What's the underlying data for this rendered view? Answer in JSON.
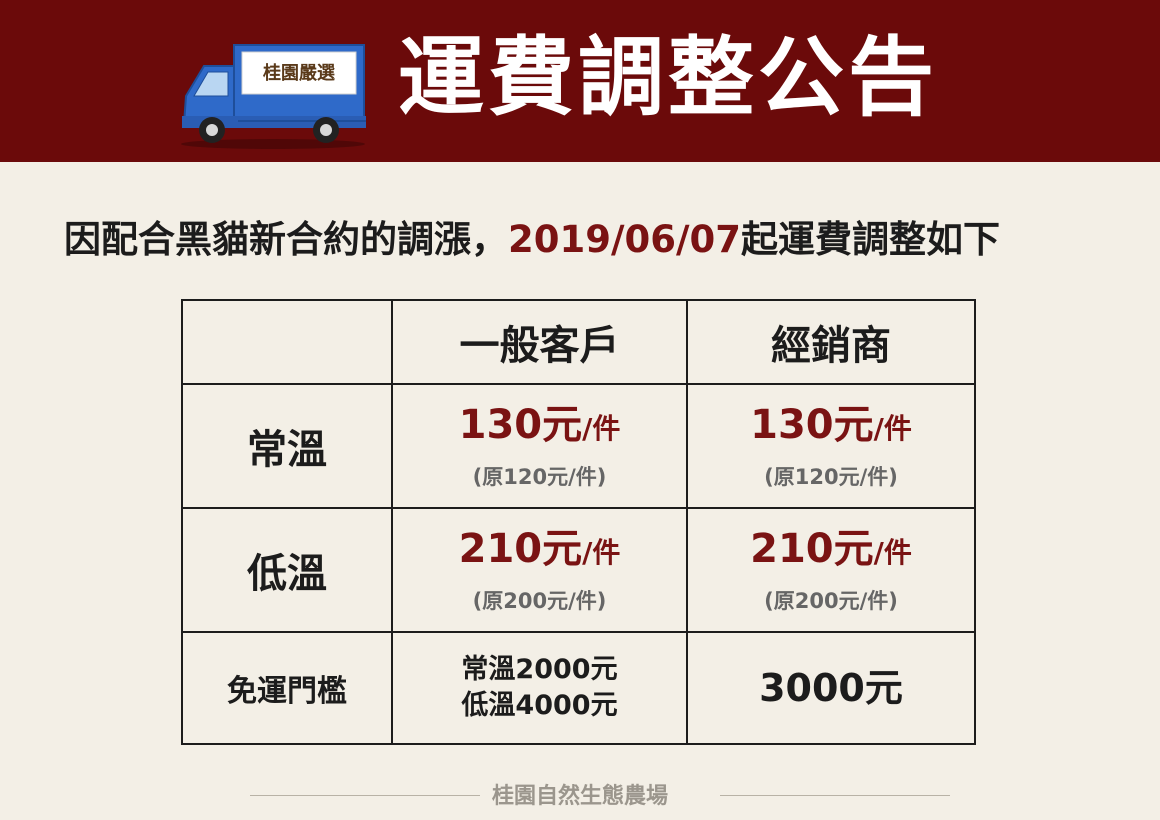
{
  "header": {
    "title": "運費調整公告",
    "truck_logo_text": "桂園嚴選"
  },
  "notice": {
    "lead": "因配合黑貓新合約的調漲，",
    "date": "2019/06/07",
    "tail": "起運費調整如下"
  },
  "table": {
    "columns": [
      "一般客戶",
      "經銷商"
    ],
    "rows": [
      {
        "label": "常溫",
        "general": {
          "price": "130元",
          "unit": "/件",
          "original": "(原120元/件)"
        },
        "dealer": {
          "price": "130元",
          "unit": "/件",
          "original": "(原120元/件)"
        }
      },
      {
        "label": "低溫",
        "general": {
          "price": "210元",
          "unit": "/件",
          "original": "(原200元/件)"
        },
        "dealer": {
          "price": "210元",
          "unit": "/件",
          "original": "(原200元/件)"
        }
      }
    ],
    "free_shipping": {
      "label": "免運門檻",
      "general_line1": "常溫2000元",
      "general_line2": "低溫4000元",
      "dealer": "3000元"
    }
  },
  "footer": {
    "text": "桂園自然生態農場"
  },
  "colors": {
    "header_bg": "#6b0a0a",
    "accent": "#7a1313",
    "background": "#f3efe6"
  }
}
